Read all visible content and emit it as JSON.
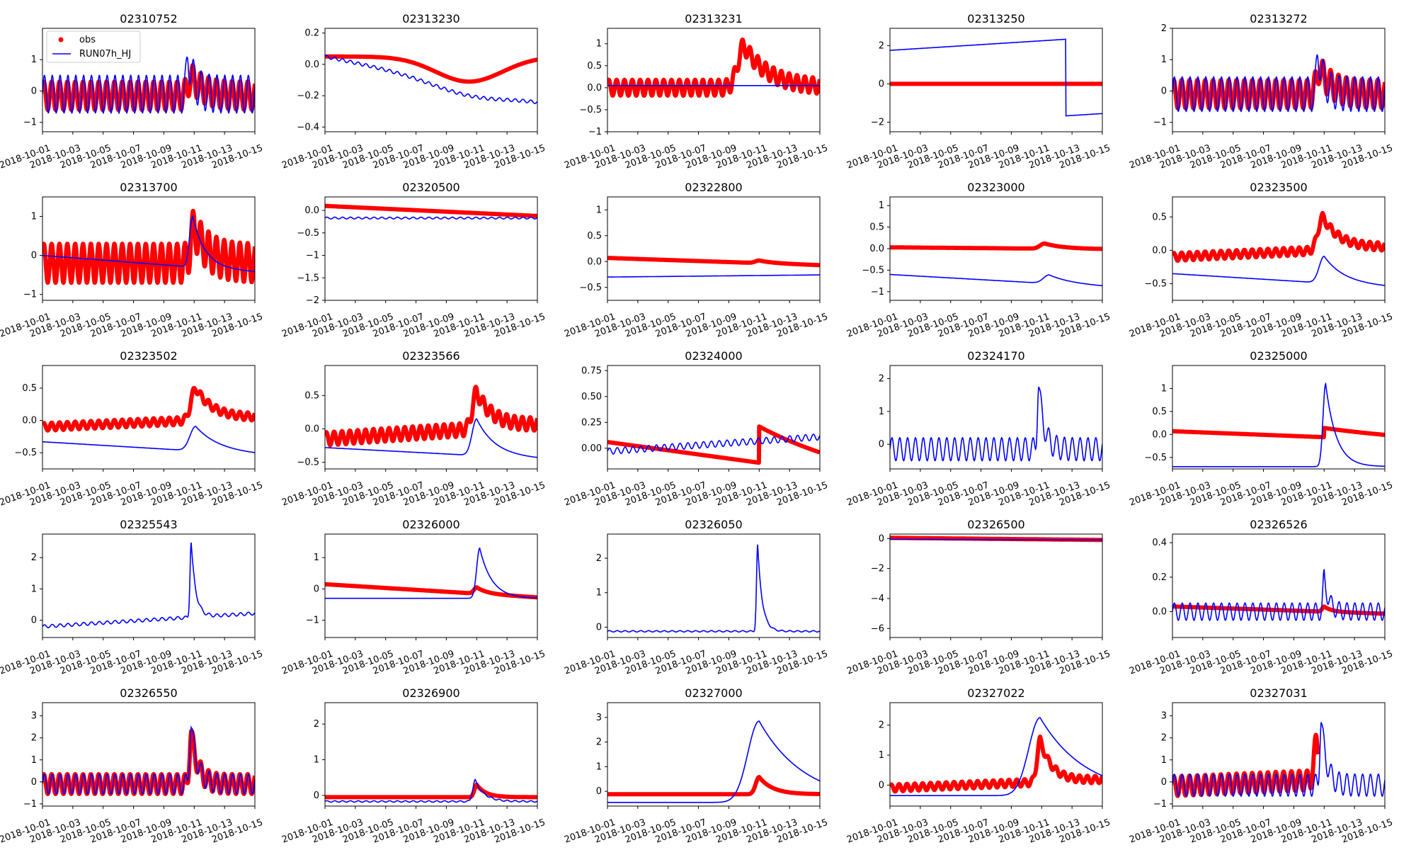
{
  "figure": {
    "x_tick_labels": [
      "2018-10-01",
      "2018-10-03",
      "2018-10-05",
      "2018-10-07",
      "2018-10-09",
      "2018-10-11",
      "2018-10-13",
      "2018-10-15"
    ],
    "legend": {
      "obs_label": "obs",
      "model_label": "RUN07h_HJ",
      "location": "upper-left of first panel"
    },
    "obs_color": "#ff0000",
    "model_color": "#0000ff"
  },
  "chart_data": [
    {
      "type": "line",
      "title": "02310752",
      "ylim": [
        -1.3,
        2.0
      ],
      "yticks": [
        -1,
        0,
        1
      ],
      "obs": {
        "base": -0.15,
        "amp": 0.45,
        "trend": 0.0,
        "peak": 0.6,
        "peak_t": 9.8,
        "peak_w": 0.8,
        "start": 0,
        "end": 14
      },
      "model": {
        "base": -0.1,
        "amp": 0.6,
        "trend": 0.0,
        "peak": 1.2,
        "peak_t": 9.6,
        "peak_w": 0.4
      }
    },
    {
      "type": "line",
      "title": "02313230",
      "ylim": [
        -0.43,
        0.23
      ],
      "yticks": [
        -0.4,
        -0.2,
        0.0,
        0.2
      ],
      "obs": {
        "base": 0.05,
        "amp": 0.0,
        "trend": 0.0,
        "dip": -0.16,
        "dip_t": 9.5,
        "dip_w": 2.2,
        "start": 0,
        "end": 14
      },
      "model": {
        "base": 0.05,
        "amp": 0.01,
        "trend": -0.02,
        "dip": -0.06,
        "dip_t": 9.5,
        "dip_w": 2.5
      }
    },
    {
      "type": "line",
      "title": "02313231",
      "ylim": [
        -1.0,
        1.35
      ],
      "yticks": [
        -1.0,
        -0.5,
        0.0,
        0.5,
        1.0
      ],
      "obs": {
        "base": 0.0,
        "amp": 0.18,
        "trend": 0.0,
        "peak": 0.95,
        "peak_t": 9.0,
        "peak_w": 1.6,
        "start": 0,
        "end": 14
      },
      "model": {
        "base": 0.05,
        "amp": 0.0,
        "trend": 0.0
      }
    },
    {
      "type": "line",
      "title": "02313250",
      "ylim": [
        -2.5,
        2.9
      ],
      "yticks": [
        -2,
        0,
        2
      ],
      "obs": {
        "base": 0.0,
        "amp": 0.0,
        "trend": 0.0,
        "start": 0,
        "end": 14
      },
      "model": {
        "base": 1.75,
        "amp": 0.0,
        "trend": 0.05,
        "step": -4.0,
        "step_t": 11.6
      }
    },
    {
      "type": "line",
      "title": "02313272",
      "ylim": [
        -1.3,
        2.0
      ],
      "yticks": [
        -1,
        0,
        1,
        2
      ],
      "obs": {
        "base": -0.1,
        "amp": 0.45,
        "trend": 0.0,
        "peak": 0.8,
        "peak_t": 9.7,
        "peak_w": 0.8,
        "start": 0,
        "end": 14
      },
      "model": {
        "base": -0.1,
        "amp": 0.55,
        "trend": 0.0,
        "peak": 1.3,
        "peak_t": 9.6,
        "peak_w": 0.4
      }
    },
    {
      "type": "line",
      "title": "02313700",
      "ylim": [
        -1.15,
        1.5
      ],
      "yticks": [
        -1,
        0,
        1
      ],
      "obs": {
        "base": -0.2,
        "amp": 0.5,
        "trend": 0.0,
        "peak": 0.9,
        "peak_t": 10.0,
        "peak_w": 0.9,
        "start": 0,
        "end": 14
      },
      "model": {
        "base": 0.0,
        "amp": 0.0,
        "trend": -0.03,
        "peak": 1.3,
        "peak_t": 9.9,
        "peak_w": 0.8
      }
    },
    {
      "type": "line",
      "title": "02320500",
      "ylim": [
        -2.0,
        0.3
      ],
      "yticks": [
        -2.0,
        -1.5,
        -1.0,
        -0.5,
        0.0
      ],
      "obs": {
        "base": 0.1,
        "amp": 0.0,
        "trend": -0.016,
        "start": 0,
        "end": 14
      },
      "model": {
        "base": -0.17,
        "amp": 0.02,
        "trend": 0.0
      }
    },
    {
      "type": "line",
      "title": "02322800",
      "ylim": [
        -0.75,
        1.25
      ],
      "yticks": [
        -0.5,
        0.0,
        0.5,
        1.0
      ],
      "obs": {
        "base": 0.07,
        "amp": 0.0,
        "trend": -0.01,
        "peak": 0.05,
        "peak_t": 10.0,
        "peak_w": 1.0,
        "start": 0,
        "end": 14
      },
      "model": {
        "base": -0.3,
        "amp": 0.0,
        "trend": 0.003
      }
    },
    {
      "type": "line",
      "title": "02323000",
      "ylim": [
        -1.2,
        1.2
      ],
      "yticks": [
        -1.0,
        -0.5,
        0.0,
        0.5,
        1.0
      ],
      "obs": {
        "base": 0.03,
        "amp": 0.0,
        "trend": -0.003,
        "peak": 0.12,
        "peak_t": 10.2,
        "peak_w": 1.2,
        "start": 0,
        "end": 14
      },
      "model": {
        "base": -0.6,
        "amp": 0.0,
        "trend": -0.02,
        "peak": 0.2,
        "peak_t": 10.5,
        "peak_w": 1.5
      }
    },
    {
      "type": "line",
      "title": "02323500",
      "ylim": [
        -0.75,
        0.8
      ],
      "yticks": [
        -0.5,
        0.0,
        0.5
      ],
      "obs": {
        "base": -0.1,
        "amp": 0.06,
        "trend": 0.01,
        "peak": 0.5,
        "peak_t": 9.9,
        "peak_w": 1.2,
        "start": 0,
        "end": 14
      },
      "model": {
        "base": -0.35,
        "amp": 0.0,
        "trend": -0.014,
        "peak": 0.4,
        "peak_t": 10.0,
        "peak_w": 1.3
      }
    },
    {
      "type": "line",
      "title": "02323502",
      "ylim": [
        -0.75,
        0.85
      ],
      "yticks": [
        -0.5,
        0.0,
        0.5
      ],
      "obs": {
        "base": -0.1,
        "amp": 0.06,
        "trend": 0.01,
        "peak": 0.5,
        "peak_t": 10.1,
        "peak_w": 1.2,
        "start": 0,
        "end": 14
      },
      "model": {
        "base": -0.33,
        "amp": 0.0,
        "trend": -0.014,
        "peak": 0.38,
        "peak_t": 10.1,
        "peak_w": 1.5
      }
    },
    {
      "type": "line",
      "title": "02323566",
      "ylim": [
        -0.6,
        0.95
      ],
      "yticks": [
        -0.5,
        0.0,
        0.5
      ],
      "obs": {
        "base": -0.15,
        "amp": 0.1,
        "trend": 0.015,
        "peak": 0.55,
        "peak_t": 10.0,
        "peak_w": 1.1,
        "start": 0,
        "end": 14
      },
      "model": {
        "base": -0.28,
        "amp": 0.0,
        "trend": -0.012,
        "peak": 0.55,
        "peak_t": 10.0,
        "peak_w": 1.2
      }
    },
    {
      "type": "line",
      "title": "02324000",
      "ylim": [
        -0.2,
        0.8
      ],
      "yticks": [
        0.0,
        0.25,
        0.5,
        0.75
      ],
      "obs": {
        "base": 0.06,
        "amp": 0.0,
        "trend": -0.02,
        "step": 0.35,
        "step_t": 10.0,
        "start": 0,
        "end": 14
      },
      "model": {
        "base": -0.03,
        "amp": 0.03,
        "trend": 0.01
      }
    },
    {
      "type": "line",
      "title": "02324170",
      "ylim": [
        -0.75,
        2.4
      ],
      "yticks": [
        0,
        1,
        2
      ],
      "obs": null,
      "model": {
        "base": -0.15,
        "amp": 0.35,
        "trend": 0.0,
        "peak": 2.0,
        "peak_t": 9.8,
        "peak_w": 0.35
      }
    },
    {
      "type": "line",
      "title": "02325000",
      "ylim": [
        -0.75,
        1.5
      ],
      "yticks": [
        -0.5,
        0.0,
        0.5,
        1.0
      ],
      "obs": {
        "base": 0.07,
        "amp": 0.0,
        "trend": -0.013,
        "step": 0.2,
        "step_t": 10.0,
        "start": 0,
        "end": 14
      },
      "model": {
        "base": -0.7,
        "amp": 0.0,
        "trend": 0.0,
        "peak": 1.8,
        "peak_t": 10.1,
        "peak_w": 0.7
      }
    },
    {
      "type": "line",
      "title": "02325543",
      "ylim": [
        -0.55,
        2.75
      ],
      "yticks": [
        0,
        1,
        2
      ],
      "obs": null,
      "model": {
        "base": -0.2,
        "amp": 0.05,
        "trend": 0.03,
        "peak": 2.4,
        "peak_t": 9.8,
        "peak_w": 0.3
      }
    },
    {
      "type": "line",
      "title": "02326000",
      "ylim": [
        -1.55,
        1.75
      ],
      "yticks": [
        -1,
        0,
        1
      ],
      "obs": {
        "base": 0.15,
        "amp": 0.0,
        "trend": -0.03,
        "peak": 0.2,
        "peak_t": 10.0,
        "peak_w": 0.7,
        "start": 0,
        "end": 14
      },
      "model": {
        "base": -0.3,
        "amp": 0.0,
        "trend": 0.0,
        "peak": 1.6,
        "peak_t": 10.2,
        "peak_w": 0.8
      }
    },
    {
      "type": "line",
      "title": "02326050",
      "ylim": [
        -0.3,
        2.7
      ],
      "yticks": [
        0,
        1,
        2
      ],
      "obs": null,
      "model": {
        "base": -0.12,
        "amp": 0.02,
        "trend": 0.0,
        "peak": 2.5,
        "peak_t": 9.9,
        "peak_w": 0.3
      }
    },
    {
      "type": "line",
      "title": "02326500",
      "ylim": [
        -6.6,
        0.3
      ],
      "yticks": [
        -6,
        -4,
        -2,
        0
      ],
      "obs": {
        "base": 0.05,
        "amp": 0.0,
        "trend": -0.01,
        "start": 0,
        "end": 14
      },
      "model": {
        "base": -0.05,
        "amp": 0.0,
        "trend": -0.003
      }
    },
    {
      "type": "line",
      "title": "02326526",
      "ylim": [
        -0.15,
        0.45
      ],
      "yticks": [
        0.0,
        0.2,
        0.4
      ],
      "obs": {
        "base": 0.03,
        "amp": 0.0,
        "trend": -0.003,
        "peak": 0.03,
        "peak_t": 10.0,
        "peak_w": 0.5,
        "start": 0,
        "end": 14
      },
      "model": {
        "base": 0.0,
        "amp": 0.05,
        "trend": 0.0,
        "peak": 0.2,
        "peak_t": 10.0,
        "peak_w": 0.3
      }
    },
    {
      "type": "line",
      "title": "02326550",
      "ylim": [
        -1.1,
        3.6
      ],
      "yticks": [
        -1,
        0,
        1,
        2,
        3
      ],
      "obs": {
        "base": -0.1,
        "amp": 0.45,
        "trend": 0.0,
        "peak": 2.3,
        "peak_t": 9.8,
        "peak_w": 0.45,
        "start": 0,
        "end": 14
      },
      "model": {
        "base": -0.1,
        "amp": 0.45,
        "trend": 0.0,
        "peak": 2.7,
        "peak_t": 9.8,
        "peak_w": 0.4
      }
    },
    {
      "type": "line",
      "title": "02326900",
      "ylim": [
        -0.3,
        2.6
      ],
      "yticks": [
        0,
        1,
        2
      ],
      "obs": {
        "base": -0.05,
        "amp": 0.0,
        "trend": 0.0,
        "peak": 0.35,
        "peak_t": 10.0,
        "peak_w": 0.6,
        "start": 0,
        "end": 14
      },
      "model": {
        "base": -0.17,
        "amp": 0.02,
        "trend": 0.0,
        "peak": 0.6,
        "peak_t": 9.9,
        "peak_w": 0.6
      }
    },
    {
      "type": "line",
      "title": "02327000",
      "ylim": [
        -0.6,
        3.6
      ],
      "yticks": [
        0,
        1,
        2,
        3
      ],
      "obs": {
        "base": -0.12,
        "amp": 0.0,
        "trend": 0.0,
        "peak": 0.7,
        "peak_t": 10.0,
        "peak_w": 0.9,
        "start": 0,
        "end": 14
      },
      "model": {
        "base": -0.45,
        "amp": 0.0,
        "trend": 0.0,
        "peak": 3.3,
        "peak_t": 10.0,
        "peak_w": 3.0
      }
    },
    {
      "type": "line",
      "title": "02327022",
      "ylim": [
        -0.7,
        2.75
      ],
      "yticks": [
        0,
        1,
        2
      ],
      "obs": {
        "base": -0.1,
        "amp": 0.12,
        "trend": 0.02,
        "peak": 1.4,
        "peak_t": 9.9,
        "peak_w": 0.8,
        "start": 0,
        "end": 14
      },
      "model": {
        "base": -0.35,
        "amp": 0.0,
        "trend": 0.0,
        "peak": 2.6,
        "peak_t": 9.9,
        "peak_w": 3.0
      }
    },
    {
      "type": "line",
      "title": "02327031",
      "ylim": [
        -1.1,
        3.6
      ],
      "yticks": [
        -1,
        0,
        1,
        2,
        3
      ],
      "obs": {
        "base": -0.2,
        "amp": 0.45,
        "trend": 0.03,
        "peak": 1.8,
        "peak_t": 9.5,
        "peak_w": 0.6,
        "start": 0,
        "end": 9.6
      },
      "model": {
        "base": -0.15,
        "amp": 0.5,
        "trend": 0.0,
        "peak": 3.0,
        "peak_t": 9.8,
        "peak_w": 0.35
      }
    }
  ]
}
